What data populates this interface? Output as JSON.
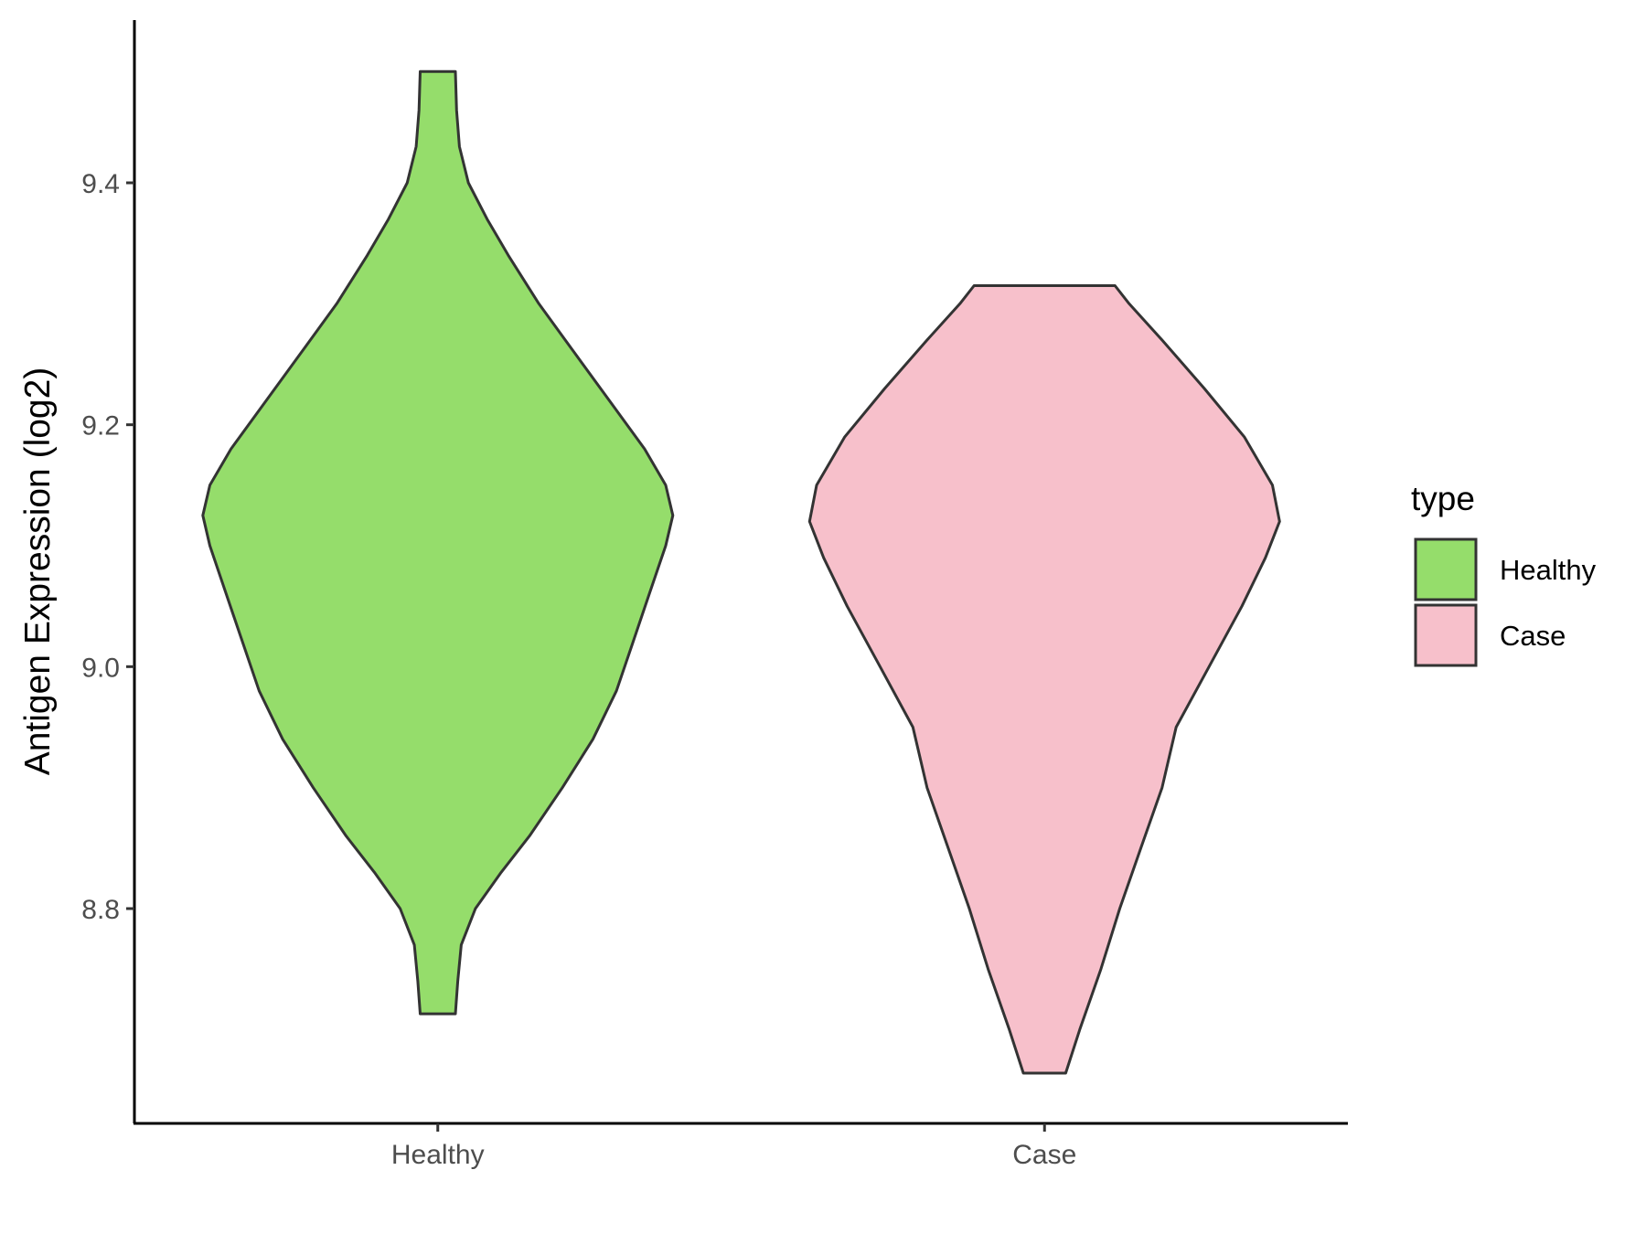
{
  "chart_data": {
    "type": "violin",
    "title": "",
    "xlabel": "",
    "ylabel": "Antigen Expression (log2)",
    "ylim": [
      8.64,
      9.53
    ],
    "y_ticks": [
      "8.8",
      "9.0",
      "9.2",
      "9.4"
    ],
    "categories": [
      "Healthy",
      "Case"
    ],
    "legend": {
      "title": "type",
      "position": "right",
      "entries": [
        "Healthy",
        "Case"
      ]
    },
    "grid": false,
    "series": [
      {
        "name": "Healthy",
        "color": "#95dd6b",
        "min": 8.713,
        "max": 9.492,
        "density": [
          [
            8.713,
            0.075
          ],
          [
            8.74,
            0.085
          ],
          [
            8.77,
            0.1
          ],
          [
            8.8,
            0.16
          ],
          [
            8.83,
            0.27
          ],
          [
            8.86,
            0.39
          ],
          [
            8.9,
            0.53
          ],
          [
            8.94,
            0.66
          ],
          [
            8.98,
            0.76
          ],
          [
            9.02,
            0.83
          ],
          [
            9.06,
            0.9
          ],
          [
            9.1,
            0.97
          ],
          [
            9.125,
            1.0
          ],
          [
            9.15,
            0.97
          ],
          [
            9.18,
            0.88
          ],
          [
            9.22,
            0.73
          ],
          [
            9.26,
            0.58
          ],
          [
            9.3,
            0.43
          ],
          [
            9.34,
            0.3
          ],
          [
            9.37,
            0.21
          ],
          [
            9.4,
            0.13
          ],
          [
            9.43,
            0.092
          ],
          [
            9.46,
            0.08
          ],
          [
            9.492,
            0.075
          ]
        ]
      },
      {
        "name": "Case",
        "color": "#f7c0cb",
        "min": 8.664,
        "max": 9.315,
        "density": [
          [
            8.664,
            0.09
          ],
          [
            8.7,
            0.15
          ],
          [
            8.75,
            0.24
          ],
          [
            8.8,
            0.32
          ],
          [
            8.85,
            0.41
          ],
          [
            8.9,
            0.5
          ],
          [
            8.95,
            0.56
          ],
          [
            9.0,
            0.7
          ],
          [
            9.05,
            0.84
          ],
          [
            9.09,
            0.94
          ],
          [
            9.12,
            1.0
          ],
          [
            9.15,
            0.97
          ],
          [
            9.19,
            0.85
          ],
          [
            9.23,
            0.68
          ],
          [
            9.27,
            0.5
          ],
          [
            9.3,
            0.36
          ],
          [
            9.315,
            0.3
          ]
        ]
      }
    ]
  }
}
